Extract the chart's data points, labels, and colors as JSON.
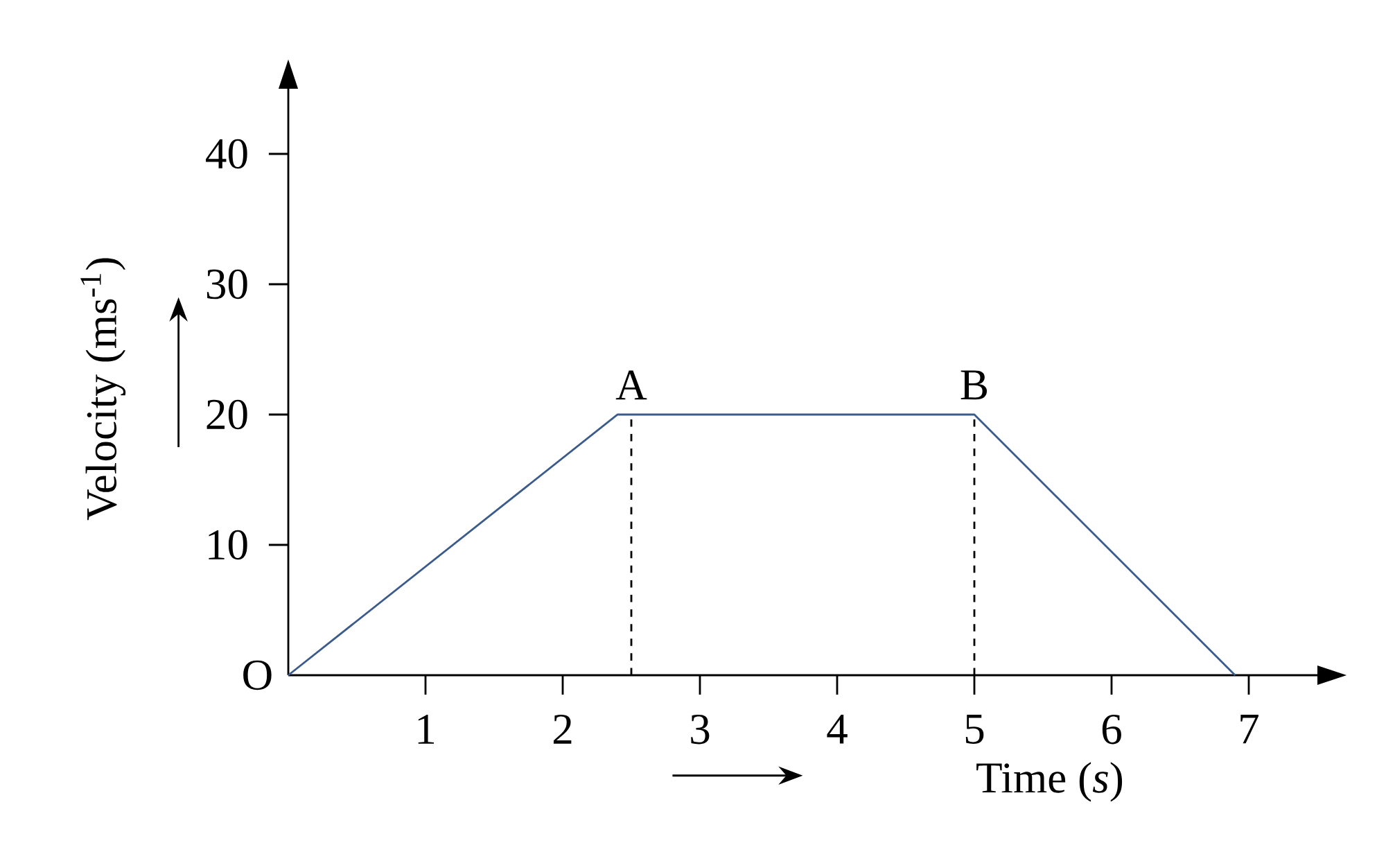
{
  "chart_data": {
    "type": "line",
    "xlabel": "Time (*s*)",
    "ylabel": "Velocity (ms$^{-1}$)",
    "x": [
      0,
      2.4,
      5,
      6.9
    ],
    "values": [
      0,
      20,
      20,
      0
    ],
    "color": "#3b5b8c",
    "xlim": [
      0,
      7.5
    ],
    "ylim": [
      0,
      45
    ],
    "xticks": [
      1,
      2,
      3,
      4,
      5,
      6,
      7
    ],
    "yticks": [
      10,
      20,
      30,
      40
    ],
    "ref_lines": [
      {
        "axis": "x",
        "value": 2.5,
        "label": "A",
        "line_style": "dashed"
      },
      {
        "axis": "x",
        "value": 5,
        "label": "B",
        "line_style": "dashed"
      }
    ],
    "annotations": [
      {
        "text": "O",
        "x": 0,
        "y": 0
      }
    ]
  }
}
